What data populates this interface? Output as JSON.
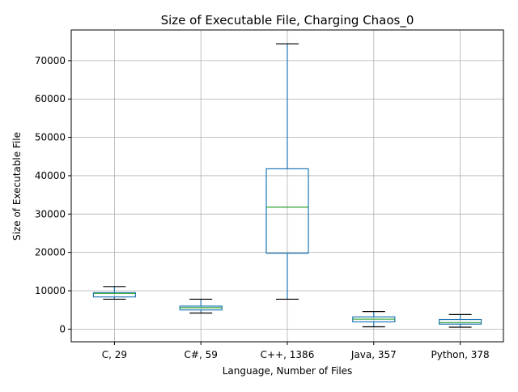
{
  "chart_data": {
    "type": "box",
    "title": "Size of Executable File, Charging Chaos_0",
    "xlabel": "Language, Number of Files",
    "ylabel": "Size of Executable File",
    "ylim": [
      -3300,
      78000
    ],
    "yticks": [
      0,
      10000,
      20000,
      30000,
      40000,
      50000,
      60000,
      70000
    ],
    "grid": true,
    "categories": [
      "C, 29",
      "C#, 59",
      "C++, 1386",
      "Java, 357",
      "Python, 378"
    ],
    "boxes": [
      {
        "whisker_low": 7800,
        "q1": 8400,
        "median": 9300,
        "q3": 9500,
        "whisker_high": 11100
      },
      {
        "whisker_low": 4200,
        "q1": 5000,
        "median": 5600,
        "q3": 6000,
        "whisker_high": 7800
      },
      {
        "whisker_low": 7800,
        "q1": 19800,
        "median": 31800,
        "q3": 41800,
        "whisker_high": 74400
      },
      {
        "whisker_low": 600,
        "q1": 1900,
        "median": 2600,
        "q3": 3200,
        "whisker_high": 4600
      },
      {
        "whisker_low": 500,
        "q1": 1300,
        "median": 1700,
        "q3": 2500,
        "whisker_high": 3800
      }
    ],
    "colors": {
      "box": "#1f77b4",
      "median": "#2ca02c",
      "cap": "#000000",
      "grid": "#b0b0b0"
    }
  }
}
